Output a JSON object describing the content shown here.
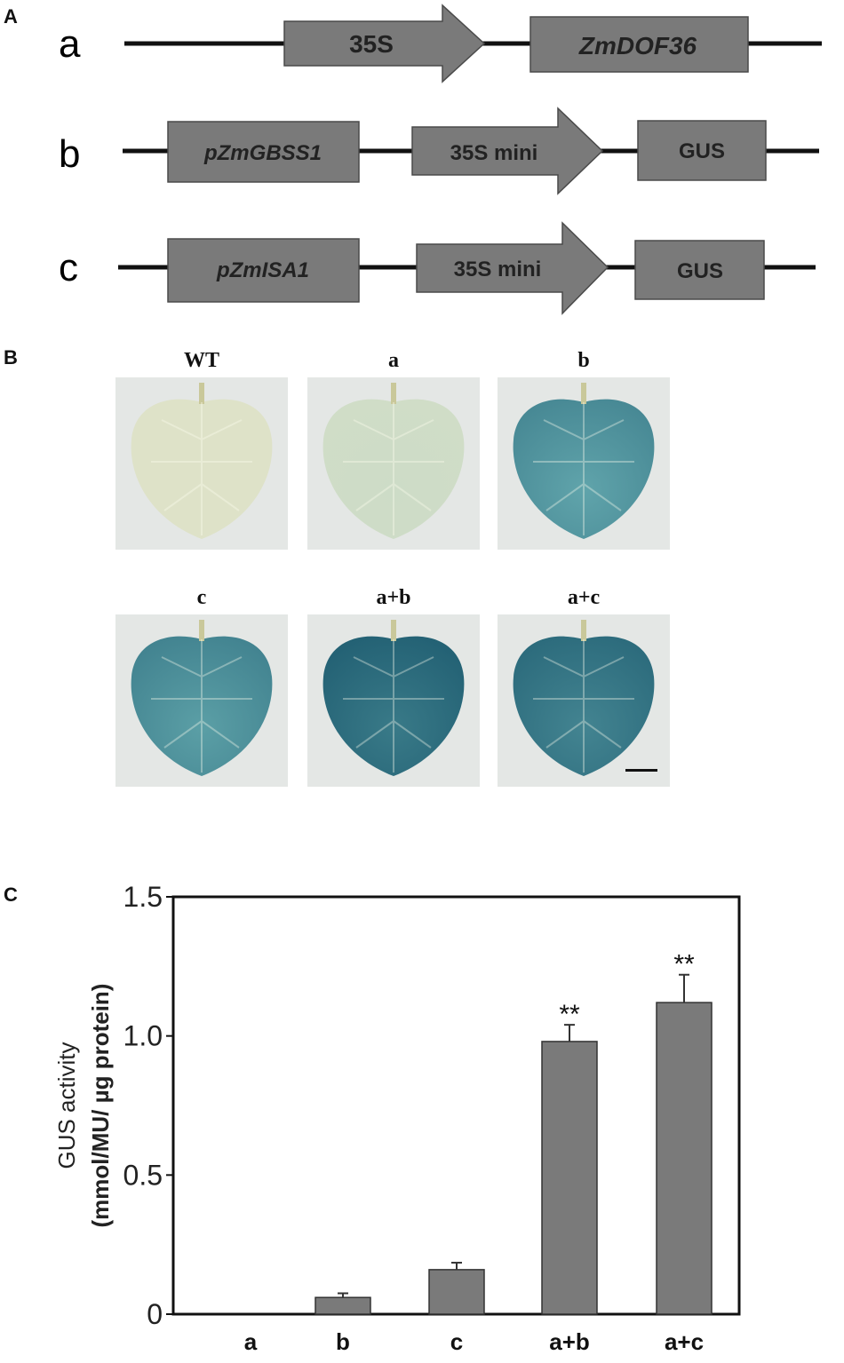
{
  "panels": {
    "A": "A",
    "B": "B",
    "C": "C"
  },
  "constructs": [
    {
      "row_label": "a",
      "elements": [
        "35S",
        "ZmDOF36"
      ]
    },
    {
      "row_label": "b",
      "elements": [
        "pZmGBSS1",
        "35S mini",
        "GUS"
      ]
    },
    {
      "row_label": "c",
      "elements": [
        "pZmISA1",
        "35S mini",
        "GUS"
      ]
    }
  ],
  "leaves": [
    {
      "label": "WT",
      "stain": 0.0
    },
    {
      "label": "a",
      "stain": 0.05
    },
    {
      "label": "b",
      "stain": 0.55
    },
    {
      "label": "c",
      "stain": 0.6
    },
    {
      "label": "a+b",
      "stain": 0.95
    },
    {
      "label": "a+c",
      "stain": 0.85
    }
  ],
  "colors": {
    "box_fill": "#7a7a7a",
    "bar_fill": "#7a7a7a",
    "line": "#111111",
    "leaf_bg": "#e4e7e5"
  },
  "chart_data": {
    "type": "bar",
    "categories": [
      "a",
      "b",
      "c",
      "a+b",
      "a+c"
    ],
    "values": [
      0.0,
      0.06,
      0.16,
      0.98,
      1.12
    ],
    "errors": [
      0.0,
      0.015,
      0.025,
      0.06,
      0.1
    ],
    "significance": [
      "",
      "",
      "",
      "**",
      "**"
    ],
    "ylabel_line1": "GUS activity",
    "ylabel_line2": "(mmol/MU/ µg protein)",
    "yticks": [
      "0",
      "0.5",
      "1.0",
      "1.5"
    ],
    "ytick_values": [
      0,
      0.5,
      1.0,
      1.5
    ],
    "ylim": [
      0,
      1.5
    ]
  }
}
